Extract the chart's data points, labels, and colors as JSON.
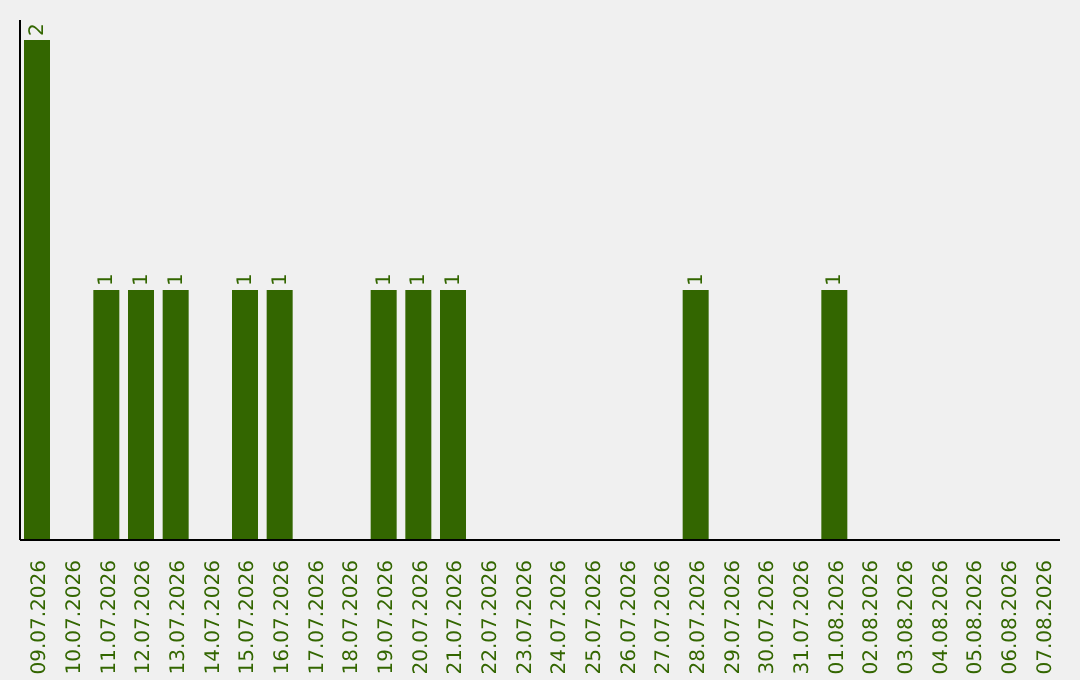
{
  "chart_data": {
    "type": "bar",
    "categories": [
      "09.07.2026",
      "10.07.2026",
      "11.07.2026",
      "12.07.2026",
      "13.07.2026",
      "14.07.2026",
      "15.07.2026",
      "16.07.2026",
      "17.07.2026",
      "18.07.2026",
      "19.07.2026",
      "20.07.2026",
      "21.07.2026",
      "22.07.2026",
      "23.07.2026",
      "24.07.2026",
      "25.07.2026",
      "26.07.2026",
      "27.07.2026",
      "28.07.2026",
      "29.07.2026",
      "30.07.2026",
      "31.07.2026",
      "01.08.2026",
      "02.08.2026",
      "03.08.2026",
      "04.08.2026",
      "05.08.2026",
      "06.08.2026",
      "07.08.2026"
    ],
    "values": [
      2,
      0,
      1,
      1,
      1,
      0,
      1,
      1,
      0,
      0,
      1,
      1,
      1,
      0,
      0,
      0,
      0,
      0,
      0,
      1,
      0,
      0,
      0,
      1,
      0,
      0,
      0,
      0,
      0,
      0
    ],
    "value_labels": [
      "2",
      null,
      "1",
      "1",
      "1",
      null,
      "1",
      "1",
      null,
      null,
      "1",
      "1",
      "1",
      null,
      null,
      null,
      null,
      null,
      null,
      "1",
      null,
      null,
      null,
      "1",
      null,
      null,
      null,
      null,
      null,
      null
    ],
    "color": "#336600",
    "ylim": [
      0,
      2.08
    ],
    "grid": false,
    "legend": false
  }
}
